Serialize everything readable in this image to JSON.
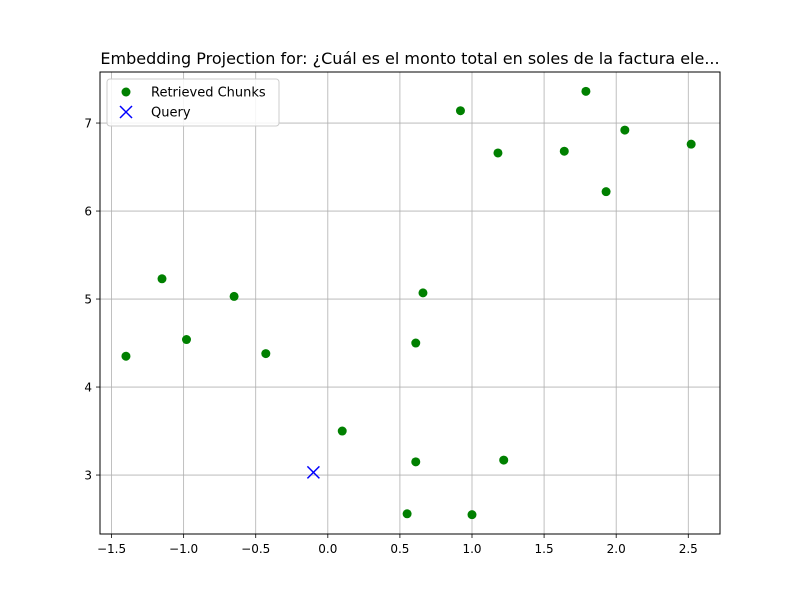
{
  "chart_data": {
    "type": "scatter",
    "title": "Embedding Projection for: ¿Cuál es el monto total en soles de la factura ele...",
    "xlabel": "",
    "ylabel": "",
    "xlim": [
      -1.58,
      2.72
    ],
    "ylim": [
      2.33,
      7.58
    ],
    "x_ticks": [
      -1.5,
      -1.0,
      -0.5,
      0.0,
      0.5,
      1.0,
      1.5,
      2.0,
      2.5
    ],
    "x_tick_labels": [
      "−1.5",
      "−1.0",
      "−0.5",
      "0.0",
      "0.5",
      "1.0",
      "1.5",
      "2.0",
      "2.5"
    ],
    "y_ticks": [
      3,
      4,
      5,
      6,
      7
    ],
    "y_tick_labels": [
      "3",
      "4",
      "5",
      "6",
      "7"
    ],
    "grid": true,
    "legend_position": "top-left",
    "series": [
      {
        "name": "Retrieved Chunks",
        "marker": "circle",
        "color": "#008000",
        "points": [
          {
            "x": 0.92,
            "y": 7.14
          },
          {
            "x": 1.79,
            "y": 7.36
          },
          {
            "x": 2.06,
            "y": 6.92
          },
          {
            "x": 2.52,
            "y": 6.76
          },
          {
            "x": 1.18,
            "y": 6.66
          },
          {
            "x": 1.64,
            "y": 6.68
          },
          {
            "x": 1.93,
            "y": 6.22
          },
          {
            "x": -1.15,
            "y": 5.23
          },
          {
            "x": -0.65,
            "y": 5.03
          },
          {
            "x": 0.66,
            "y": 5.07
          },
          {
            "x": -0.98,
            "y": 4.54
          },
          {
            "x": -1.4,
            "y": 4.35
          },
          {
            "x": -0.43,
            "y": 4.38
          },
          {
            "x": 0.61,
            "y": 4.5
          },
          {
            "x": 0.1,
            "y": 3.5
          },
          {
            "x": 0.61,
            "y": 3.15
          },
          {
            "x": 1.22,
            "y": 3.17
          },
          {
            "x": 0.55,
            "y": 2.56
          },
          {
            "x": 1.0,
            "y": 2.55
          }
        ]
      },
      {
        "name": "Query",
        "marker": "x",
        "color": "#0000ff",
        "points": [
          {
            "x": -0.1,
            "y": 3.03
          }
        ]
      }
    ]
  }
}
